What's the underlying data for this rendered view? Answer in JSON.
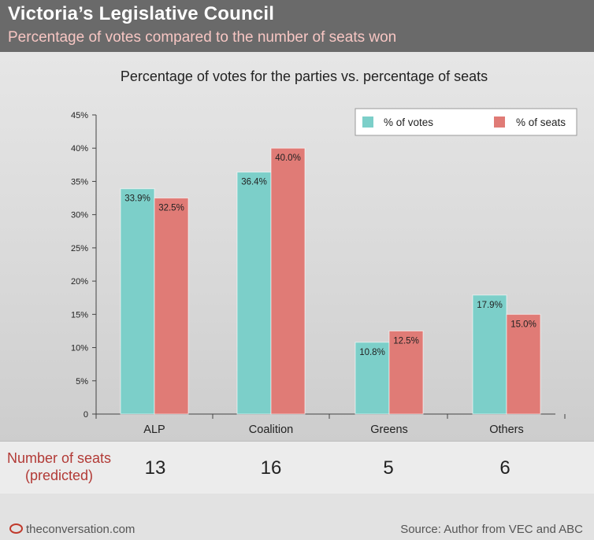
{
  "header": {
    "title": "Victoria’s Legislative Council",
    "subtitle": "Percentage of votes compared to the number of seats won"
  },
  "colors": {
    "votes": "#7ccfc9",
    "seats": "#e07b76",
    "accent_red": "#b23a36"
  },
  "chart_data": {
    "type": "bar",
    "title": "Percentage of votes for the parties vs. percentage of seats",
    "categories": [
      "ALP",
      "Coalition",
      "Greens",
      "Others"
    ],
    "series": [
      {
        "name": "% of votes",
        "values": [
          33.9,
          36.4,
          10.8,
          17.9
        ],
        "labels": [
          "33.9%",
          "36.4%",
          "10.8%",
          "17.9%"
        ]
      },
      {
        "name": "% of seats",
        "values": [
          32.5,
          40.0,
          12.5,
          15.0
        ],
        "labels": [
          "32.5%",
          "40.0%",
          "12.5%",
          "15.0%"
        ]
      }
    ],
    "ylim": [
      0,
      45
    ],
    "yticks": [
      0,
      5,
      10,
      15,
      20,
      25,
      30,
      35,
      40,
      45
    ],
    "ytick_labels": [
      "0",
      "5%",
      "10%",
      "15%",
      "20%",
      "25%",
      "30%",
      "35%",
      "40%",
      "45%"
    ],
    "xlabel": "",
    "ylabel": "",
    "legend": "top-right",
    "grid": false
  },
  "seats": {
    "label_line1": "Number of seats",
    "label_line2": "(predicted)",
    "counts": [
      "13",
      "16",
      "5",
      "6"
    ]
  },
  "footer": {
    "logo_text": "theconversation.com",
    "source": "Source: Author from VEC and ABC"
  }
}
